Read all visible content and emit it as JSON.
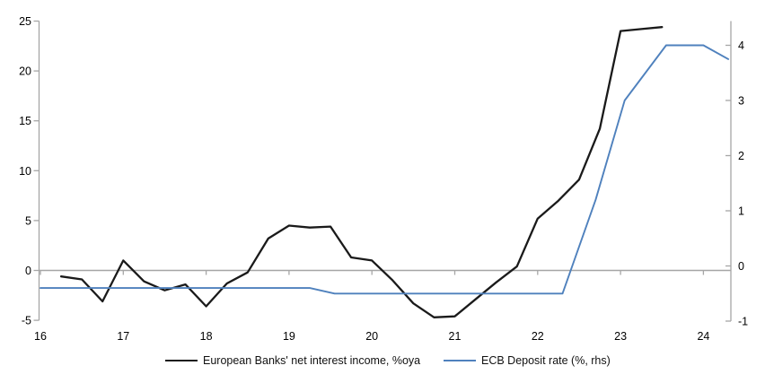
{
  "chart_data": {
    "type": "line",
    "title": "",
    "x_ticks": [
      16,
      17,
      18,
      19,
      20,
      21,
      22,
      23,
      24
    ],
    "x_range": [
      16,
      24.33
    ],
    "left_axis": {
      "ticks": [
        -5,
        0,
        5,
        10,
        15,
        20,
        25
      ],
      "range": [
        -5,
        25
      ],
      "side": "left"
    },
    "right_axis": {
      "ticks": [
        -1,
        0,
        1,
        2,
        3,
        4
      ],
      "range": [
        -1,
        4.45
      ],
      "side": "right"
    },
    "grid": "zero-line-only",
    "legend_position": "bottom",
    "series": [
      {
        "name": "European Banks' net interest income, %oya",
        "axis": "left",
        "color": "#1a1a1a",
        "points": [
          [
            16.25,
            -0.6
          ],
          [
            16.5,
            -0.9
          ],
          [
            16.75,
            -3.1
          ],
          [
            17.0,
            1.0
          ],
          [
            17.25,
            -1.1
          ],
          [
            17.5,
            -2.0
          ],
          [
            17.75,
            -1.4
          ],
          [
            18.0,
            -3.6
          ],
          [
            18.25,
            -1.3
          ],
          [
            18.5,
            -0.2
          ],
          [
            18.75,
            3.2
          ],
          [
            19.0,
            4.5
          ],
          [
            19.25,
            4.3
          ],
          [
            19.5,
            4.4
          ],
          [
            19.75,
            1.3
          ],
          [
            20.0,
            1.0
          ],
          [
            20.25,
            -1.0
          ],
          [
            20.5,
            -3.3
          ],
          [
            20.75,
            -4.7
          ],
          [
            21.0,
            -4.6
          ],
          [
            21.25,
            -2.9
          ],
          [
            21.5,
            -1.2
          ],
          [
            21.75,
            0.4
          ],
          [
            22.0,
            5.2
          ],
          [
            22.25,
            7.0
          ],
          [
            22.5,
            9.1
          ],
          [
            22.75,
            14.2
          ],
          [
            23.0,
            24.0
          ],
          [
            23.25,
            24.2
          ],
          [
            23.5,
            24.4
          ]
        ]
      },
      {
        "name": "ECB Deposit rate (%, rhs)",
        "axis": "right",
        "color": "#4F81BD",
        "points": [
          [
            16.0,
            -0.4
          ],
          [
            19.25,
            -0.4
          ],
          [
            19.55,
            -0.5
          ],
          [
            22.3,
            -0.5
          ],
          [
            22.7,
            1.2
          ],
          [
            23.05,
            3.0
          ],
          [
            23.55,
            4.0
          ],
          [
            24.0,
            4.0
          ],
          [
            24.3,
            3.75
          ]
        ]
      }
    ],
    "axis_color": "#a6a6a6",
    "tick_label_color": "#000000"
  }
}
